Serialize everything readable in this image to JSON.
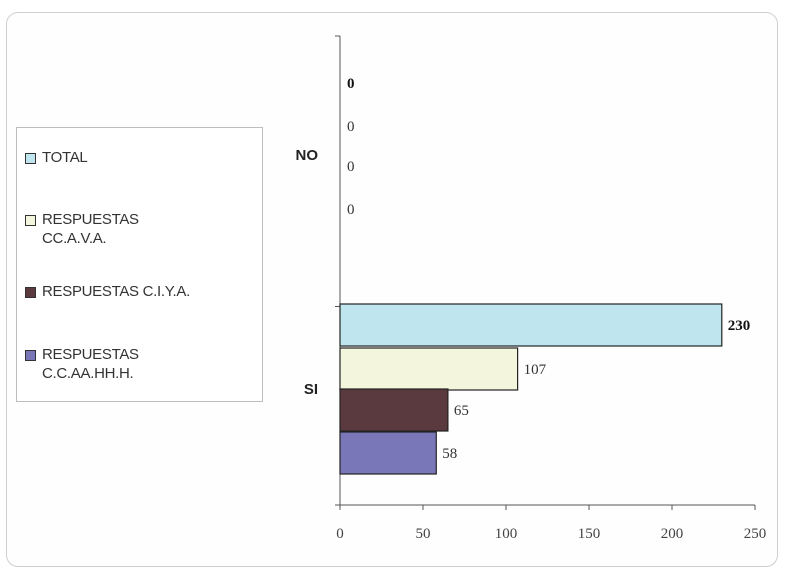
{
  "chart_data": {
    "type": "bar",
    "orientation": "horizontal",
    "categories": [
      "NO",
      "SI"
    ],
    "series": [
      {
        "name": "TOTAL",
        "values": [
          0,
          230
        ],
        "color": "#bfe6ef",
        "label_bold": true
      },
      {
        "name": "RESPUESTAS CC.A.V.A.",
        "values": [
          0,
          107
        ],
        "color": "#f3f6dc",
        "label_bold": false
      },
      {
        "name": "RESPUESTAS C.I.Y.A.",
        "values": [
          0,
          65
        ],
        "color": "#5a3a3e",
        "label_bold": false
      },
      {
        "name": "RESPUESTAS C.C.AA.HH.H.",
        "values": [
          0,
          58
        ],
        "color": "#7a77b8",
        "label_bold": false
      }
    ],
    "x_ticks": [
      "0",
      "50",
      "100",
      "150",
      "200",
      "250"
    ],
    "xlim": [
      0,
      250
    ],
    "legend_position": "left",
    "grid": false
  },
  "legend": {
    "items": [
      {
        "label": "TOTAL",
        "color": "#bfe6ef"
      },
      {
        "label": "RESPUESTAS CC.A.V.A.",
        "color": "#f3f6dc"
      },
      {
        "label": "RESPUESTAS C.I.Y.A.",
        "color": "#5a3a3e"
      },
      {
        "label": "RESPUESTAS C.C.AA.HH.H.",
        "color": "#7a77b8"
      }
    ]
  }
}
